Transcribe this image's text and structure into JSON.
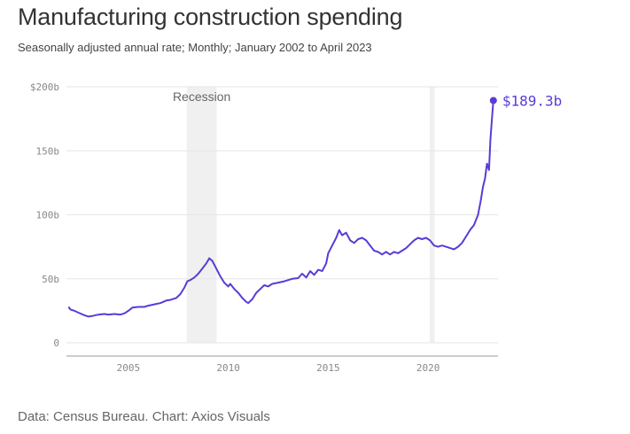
{
  "header": {
    "title": "Manufacturing construction spending",
    "subtitle": "Seasonally adjusted annual rate; Monthly; January 2002 to April 2023"
  },
  "footer": {
    "source": "Data: Census Bureau. Chart: Axios Visuals"
  },
  "colors": {
    "line": "#5b3bd6",
    "recession_band": "#f0f0f0",
    "grid": "#e6e6e6"
  },
  "chart_data": {
    "type": "line",
    "title": "Manufacturing construction spending",
    "subtitle": "Seasonally adjusted annual rate; Monthly; January 2002 to April 2023",
    "xlabel": "",
    "ylabel": "",
    "xlim": [
      2001.9,
      2023.5
    ],
    "ylim": [
      0,
      200
    ],
    "x_ticks": [
      2005,
      2010,
      2015,
      2020
    ],
    "y_ticks": [
      {
        "value": 0,
        "label": "0"
      },
      {
        "value": 50,
        "label": "50b"
      },
      {
        "value": 100,
        "label": "100b"
      },
      {
        "value": 150,
        "label": "150b"
      },
      {
        "value": 200,
        "label": "$200b"
      }
    ],
    "grid": "horizontal",
    "legend": "none",
    "shaded_periods": [
      {
        "label": "Recession",
        "start": 2007.92,
        "end": 2009.42
      },
      {
        "label": "",
        "start": 2020.08,
        "end": 2020.33
      }
    ],
    "end_label": "$189.3b",
    "series": [
      {
        "values_unit": "billions of dollars",
        "points": [
          [
            2002.0,
            28
          ],
          [
            2002.1,
            26
          ],
          [
            2002.3,
            25
          ],
          [
            2002.5,
            23.5
          ],
          [
            2002.8,
            21.5
          ],
          [
            2003.0,
            20.5
          ],
          [
            2003.2,
            21
          ],
          [
            2003.5,
            22
          ],
          [
            2003.8,
            22.5
          ],
          [
            2004.0,
            22
          ],
          [
            2004.3,
            22.5
          ],
          [
            2004.6,
            22
          ],
          [
            2004.8,
            23
          ],
          [
            2005.0,
            25
          ],
          [
            2005.2,
            27.5
          ],
          [
            2005.5,
            28
          ],
          [
            2005.8,
            28
          ],
          [
            2006.0,
            29
          ],
          [
            2006.3,
            30
          ],
          [
            2006.6,
            31
          ],
          [
            2006.9,
            33
          ],
          [
            2007.1,
            33.5
          ],
          [
            2007.4,
            35
          ],
          [
            2007.6,
            38
          ],
          [
            2007.8,
            43
          ],
          [
            2007.95,
            48
          ],
          [
            2008.1,
            49
          ],
          [
            2008.3,
            51
          ],
          [
            2008.5,
            54
          ],
          [
            2008.7,
            58
          ],
          [
            2008.9,
            62
          ],
          [
            2009.05,
            66
          ],
          [
            2009.2,
            64
          ],
          [
            2009.4,
            58
          ],
          [
            2009.6,
            52
          ],
          [
            2009.8,
            47
          ],
          [
            2010.0,
            44
          ],
          [
            2010.1,
            46
          ],
          [
            2010.3,
            42
          ],
          [
            2010.5,
            39
          ],
          [
            2010.7,
            35
          ],
          [
            2010.9,
            32
          ],
          [
            2011.0,
            31
          ],
          [
            2011.2,
            34
          ],
          [
            2011.4,
            39
          ],
          [
            2011.6,
            42
          ],
          [
            2011.8,
            45
          ],
          [
            2012.0,
            44
          ],
          [
            2012.2,
            46
          ],
          [
            2012.5,
            47
          ],
          [
            2012.8,
            48
          ],
          [
            2013.0,
            49
          ],
          [
            2013.2,
            50
          ],
          [
            2013.5,
            50.5
          ],
          [
            2013.7,
            54
          ],
          [
            2013.9,
            51
          ],
          [
            2014.1,
            56
          ],
          [
            2014.3,
            53
          ],
          [
            2014.5,
            57
          ],
          [
            2014.7,
            56
          ],
          [
            2014.9,
            62
          ],
          [
            2015.0,
            70
          ],
          [
            2015.2,
            76
          ],
          [
            2015.4,
            82
          ],
          [
            2015.55,
            88
          ],
          [
            2015.7,
            84
          ],
          [
            2015.9,
            86
          ],
          [
            2016.1,
            80
          ],
          [
            2016.3,
            78
          ],
          [
            2016.5,
            81
          ],
          [
            2016.7,
            82
          ],
          [
            2016.9,
            80
          ],
          [
            2017.1,
            76
          ],
          [
            2017.3,
            72
          ],
          [
            2017.5,
            71
          ],
          [
            2017.7,
            69
          ],
          [
            2017.9,
            71
          ],
          [
            2018.1,
            69
          ],
          [
            2018.3,
            71
          ],
          [
            2018.5,
            70
          ],
          [
            2018.7,
            72
          ],
          [
            2018.9,
            74
          ],
          [
            2019.1,
            77
          ],
          [
            2019.3,
            80
          ],
          [
            2019.5,
            82
          ],
          [
            2019.7,
            81
          ],
          [
            2019.9,
            82
          ],
          [
            2020.1,
            80
          ],
          [
            2020.3,
            76
          ],
          [
            2020.5,
            75
          ],
          [
            2020.7,
            76
          ],
          [
            2020.9,
            75
          ],
          [
            2021.1,
            74
          ],
          [
            2021.3,
            73
          ],
          [
            2021.5,
            75
          ],
          [
            2021.7,
            78
          ],
          [
            2021.9,
            83
          ],
          [
            2022.1,
            88
          ],
          [
            2022.3,
            92
          ],
          [
            2022.5,
            100
          ],
          [
            2022.65,
            112
          ],
          [
            2022.75,
            122
          ],
          [
            2022.85,
            128
          ],
          [
            2022.95,
            140
          ],
          [
            2023.05,
            135
          ],
          [
            2023.12,
            158
          ],
          [
            2023.2,
            175
          ],
          [
            2023.27,
            189.3
          ]
        ]
      }
    ]
  }
}
